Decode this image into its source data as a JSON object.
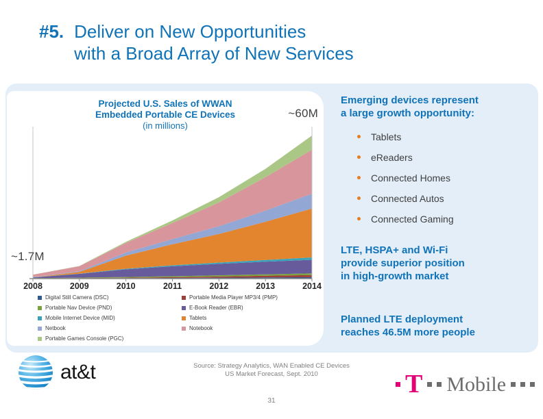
{
  "slide": {
    "title_number": "#5.",
    "title": "Deliver on New Opportunities\nwith a Broad Array of New Services",
    "source": "Source: Strategy Analytics, WAN Enabled CE Devices\nUS Market Forecast, Sept. 2010",
    "page_number": "31"
  },
  "right_panel": {
    "heading": "Emerging devices represent\na large growth opportunity:",
    "bullets": [
      "Tablets",
      "eReaders",
      "Connected Homes",
      "Connected Autos",
      "Connected Gaming"
    ],
    "paragraph1": "LTE, HSPA+ and Wi-Fi\nprovide superior position\nin high-growth market",
    "paragraph2": "Planned LTE deployment\nreaches 46.5M more people"
  },
  "logos": {
    "att_label": "at&t",
    "tmobile_t": "T",
    "tmobile_label": "Mobile"
  },
  "colors": {
    "accent_blue": "#1173b7",
    "panel_background": "#e3eef9",
    "bullet_orange": "#e87d1e",
    "tmobile_magenta": "#e20074",
    "tmobile_gray": "#6d6d6d",
    "annotation_text": "#404040",
    "source_gray": "#7f7f7f"
  },
  "chart_data": {
    "type": "area",
    "stacked": true,
    "title": "Projected U.S. Sales of WWAN\nEmbedded Portable CE Devices",
    "subtitle": "(in millions)",
    "annotation_left": "~1.7M",
    "annotation_right": "~60M",
    "categories": [
      "2008",
      "2009",
      "2010",
      "2011",
      "2012",
      "2013",
      "2014"
    ],
    "ylim": [
      0,
      60
    ],
    "grid": false,
    "legend_position": "bottom-two-columns",
    "series": [
      {
        "name": "Digital Still Camera (DSC)",
        "color": "#31598f",
        "values": [
          0.05,
          0.1,
          0.2,
          0.3,
          0.4,
          0.5,
          0.6
        ]
      },
      {
        "name": "Portable Media Player MP3/4 (PMP)",
        "color": "#9e403a",
        "values": [
          0.05,
          0.1,
          0.2,
          0.3,
          0.5,
          0.7,
          0.9
        ]
      },
      {
        "name": "Portable Nav Device (PND)",
        "color": "#7aa23c",
        "values": [
          0.1,
          0.2,
          0.3,
          0.4,
          0.5,
          0.6,
          0.7
        ]
      },
      {
        "name": "E-Book Reader (EBR)",
        "color": "#685b9b",
        "values": [
          0.3,
          1.6,
          3.2,
          4.2,
          4.8,
          5.3,
          5.7
        ]
      },
      {
        "name": "Mobile Internet Device (MID)",
        "color": "#3aa3b8",
        "values": [
          0.05,
          0.1,
          0.25,
          0.4,
          0.55,
          0.75,
          1.0
        ]
      },
      {
        "name": "Tablets",
        "color": "#e2852e",
        "values": [
          0.0,
          0.7,
          5.5,
          8.8,
          12.0,
          16.0,
          20.5
        ]
      },
      {
        "name": "Netbook",
        "color": "#92a7d4",
        "values": [
          0.1,
          0.3,
          1.3,
          2.2,
          3.2,
          4.7,
          6.2
        ]
      },
      {
        "name": "Notebook",
        "color": "#d8959b",
        "values": [
          1.0,
          2.1,
          4.0,
          6.7,
          10.0,
          14.0,
          18.5
        ]
      },
      {
        "name": "Portable Games Console (PGC)",
        "color": "#abc786",
        "values": [
          0.05,
          0.1,
          0.5,
          1.1,
          2.2,
          3.5,
          5.9
        ]
      }
    ],
    "totals_by_year": [
      1.7,
      5.3,
      15.5,
      24.4,
      34.2,
      46.1,
      60.0
    ]
  }
}
